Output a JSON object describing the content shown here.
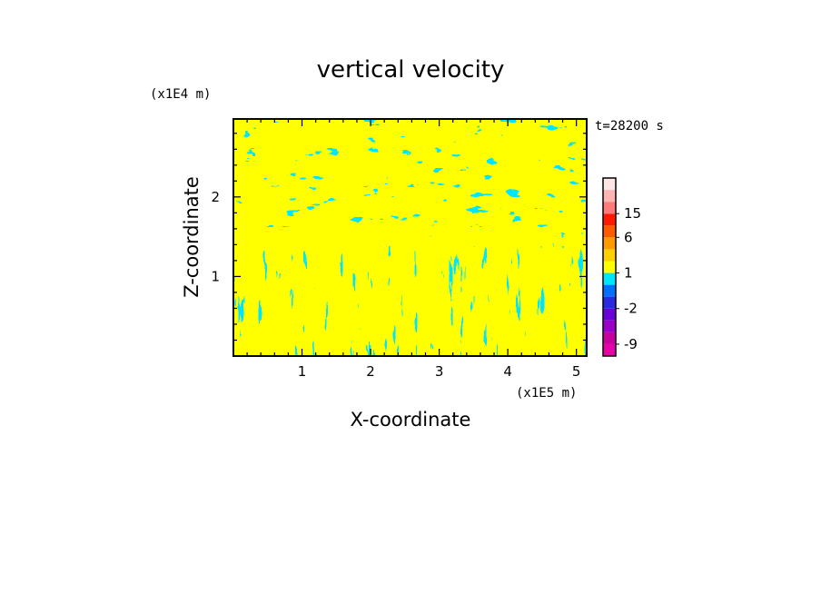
{
  "chart_data": {
    "type": "heatmap",
    "title": "vertical velocity",
    "xlabel": "X-coordinate",
    "ylabel": "Z-coordinate",
    "x_unit": "(x1E5 m)",
    "y_unit": "(x1E4 m)",
    "time_label": "t=28200 s",
    "xlim": [
      0,
      5.15
    ],
    "ylim": [
      0,
      2.98
    ],
    "x_ticks": [
      1,
      2,
      3,
      4,
      5
    ],
    "y_ticks": [
      1,
      2
    ],
    "x_tick_labels": [
      "1",
      "2",
      "3",
      "4",
      "5"
    ],
    "y_tick_labels": [
      "1",
      "2"
    ],
    "dominant_levels": [
      {
        "range": "0 to 1",
        "color": "#ffff00"
      },
      {
        "range": "-1 to 0",
        "color": "#00e5ff"
      }
    ],
    "colorbar": {
      "levels_bottom_to_top": [
        -12,
        -9,
        -6,
        -4,
        -2,
        -1,
        0,
        1,
        2,
        4,
        6,
        10,
        15,
        20,
        25
      ],
      "colors_bottom_to_top": [
        "#e800a8",
        "#c8009e",
        "#9a00c8",
        "#6a00d8",
        "#2a2ae0",
        "#0070ff",
        "#00e5ff",
        "#ffff00",
        "#ffcf00",
        "#ff9a00",
        "#ff5a00",
        "#ff1a00",
        "#ff7a7a",
        "#ffb4b4",
        "#ffe6e6"
      ],
      "tick_labels": [
        "15",
        "6",
        "1",
        "-2",
        "-9"
      ],
      "tick_values": [
        15,
        6,
        1,
        -2,
        -9
      ]
    }
  }
}
